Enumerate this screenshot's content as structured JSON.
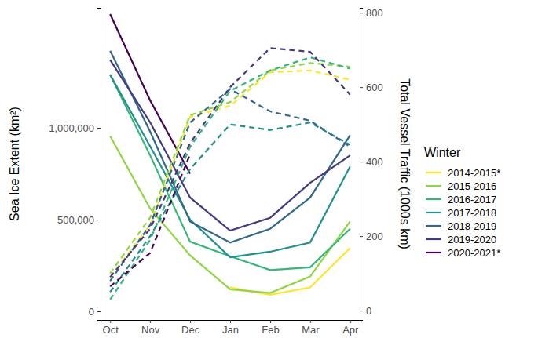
{
  "chart_data": {
    "type": "line",
    "y_label": "Sea Ice Extent  (km²)",
    "y2_label": "Total Vessel Traffic (1000s km)",
    "legend_title": "Winter",
    "legend": "right",
    "categories": [
      "Oct",
      "Nov",
      "Dec",
      "Jan",
      "Feb",
      "Mar",
      "Apr"
    ],
    "ylim": [
      -47000,
      1654000
    ],
    "yticks": [
      0,
      {
        "value": 500000,
        "label": "500,000"
      },
      {
        "value": 1000000,
        "label": "1,000,000"
      }
    ],
    "y2lim": [
      -25,
      813
    ],
    "y2ticks": [
      0,
      200,
      400,
      600,
      800
    ],
    "series": [
      {
        "name": "2014-2015*",
        "color": "#FDE725",
        "line_style": "solid",
        "values": [
          null,
          null,
          null,
          130000,
          90000,
          130000,
          345000
        ]
      },
      {
        "name": "2015-2016",
        "color": "#8FD744",
        "line_style": "solid",
        "values": [
          955000,
          560000,
          305000,
          120000,
          100000,
          190000,
          490000
        ]
      },
      {
        "name": "2016-2017",
        "color": "#35B779",
        "line_style": "solid",
        "values": [
          1290000,
          850000,
          380000,
          300000,
          225000,
          240000,
          450000
        ]
      },
      {
        "name": "2017-2018",
        "color": "#21908C",
        "line_style": "solid",
        "values": [
          1290000,
          900000,
          500000,
          295000,
          325000,
          375000,
          790000
        ]
      },
      {
        "name": "2018-2019",
        "color": "#31688E",
        "line_style": "solid",
        "values": [
          1420000,
          980000,
          490000,
          375000,
          450000,
          620000,
          960000
        ]
      },
      {
        "name": "2019-2020",
        "color": "#443A83",
        "line_style": "solid",
        "values": [
          1370000,
          1030000,
          620000,
          440000,
          510000,
          700000,
          850000
        ]
      },
      {
        "name": "2020-2021*",
        "color": "#440154",
        "line_style": "solid",
        "values": [
          1620000,
          1150000,
          750000,
          null,
          null,
          null,
          null
        ]
      },
      {
        "name": "2014-2015*",
        "color": "#FDE725",
        "line_style": "dashed",
        "axis": "y2",
        "values": [
          90,
          230,
          520,
          550,
          640,
          645,
          620
        ]
      },
      {
        "name": "2015-2016",
        "color": "#8FD744",
        "line_style": "dashed",
        "axis": "y2",
        "values": [
          100,
          250,
          525,
          560,
          645,
          665,
          655
        ]
      },
      {
        "name": "2016-2017",
        "color": "#35B779",
        "line_style": "dashed",
        "axis": "y2",
        "values": [
          30,
          190,
          440,
          590,
          645,
          680,
          650
        ]
      },
      {
        "name": "2017-2018",
        "color": "#21908C",
        "line_style": "dashed",
        "axis": "y2",
        "values": [
          50,
          200,
          380,
          500,
          485,
          505,
          445
        ]
      },
      {
        "name": "2018-2019",
        "color": "#31688E",
        "line_style": "dashed",
        "axis": "y2",
        "values": [
          80,
          230,
          505,
          595,
          535,
          510,
          440
        ]
      },
      {
        "name": "2019-2020",
        "color": "#443A83",
        "line_style": "dashed",
        "axis": "y2",
        "values": [
          90,
          220,
          450,
          600,
          705,
          695,
          580
        ]
      },
      {
        "name": "2020-2021*",
        "color": "#440154",
        "line_style": "dashed",
        "axis": "y2",
        "values": [
          65,
          155,
          420,
          null,
          null,
          null,
          null
        ]
      }
    ]
  }
}
